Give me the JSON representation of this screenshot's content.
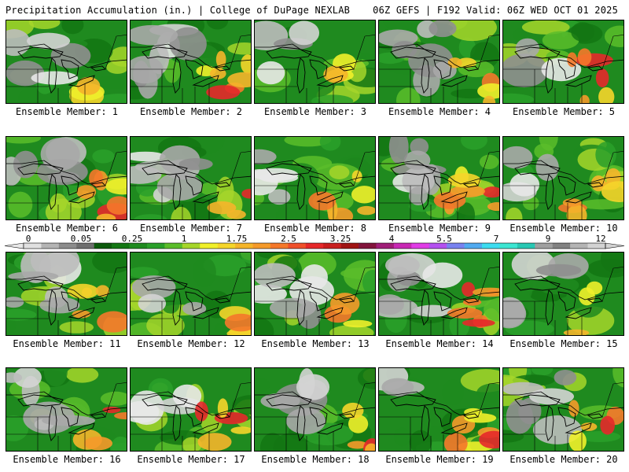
{
  "header": {
    "left": "Precipitation Accumulation (in.) | College of DuPage NEXLAB",
    "right": "06Z GEFS | F192 Valid: 06Z WED OCT 01 2025"
  },
  "panels": [
    {
      "label": "Ensemble Member: 1"
    },
    {
      "label": "Ensemble Member: 2"
    },
    {
      "label": "Ensemble Member: 3"
    },
    {
      "label": "Ensemble Member: 4"
    },
    {
      "label": "Ensemble Member: 5"
    },
    {
      "label": "Ensemble Member: 6"
    },
    {
      "label": "Ensemble Member: 7"
    },
    {
      "label": "Ensemble Member: 8"
    },
    {
      "label": "Ensemble Member: 9"
    },
    {
      "label": "Ensemble Member: 10"
    },
    {
      "label": "Ensemble Member: 11"
    },
    {
      "label": "Ensemble Member: 12"
    },
    {
      "label": "Ensemble Member: 13"
    },
    {
      "label": "Ensemble Member: 14"
    },
    {
      "label": "Ensemble Member: 15"
    },
    {
      "label": "Ensemble Member: 16"
    },
    {
      "label": "Ensemble Member: 17"
    },
    {
      "label": "Ensemble Member: 18"
    },
    {
      "label": "Ensemble Member: 19"
    },
    {
      "label": "Ensemble Member: 20"
    }
  ],
  "colorbar": {
    "labels": [
      "0",
      "0.05",
      "0.25",
      "1",
      "1.75",
      "2.5",
      "3.25",
      "4",
      "5.5",
      "7",
      "9",
      "12"
    ],
    "colors": [
      "#e0e0e0",
      "#b4b4b4",
      "#8c8c8c",
      "#6e6e6e",
      "#0c5a0c",
      "#137613",
      "#1f8a1f",
      "#2aa02a",
      "#5bbd2a",
      "#a6d62a",
      "#f0f02a",
      "#f5d52a",
      "#f5b52a",
      "#f59a2a",
      "#f5782a",
      "#f0502a",
      "#e6282a",
      "#c81e1e",
      "#a01414",
      "#82143c",
      "#a01e78",
      "#c828b4",
      "#e03ce6",
      "#b450f0",
      "#7882f0",
      "#50aaf0",
      "#3cdcf0",
      "#3ce6d2",
      "#28c8b4",
      "#a0a0a0",
      "#828282",
      "#b4b4b4",
      "#d2d2d2"
    ],
    "accent_green": "#1f8a1f"
  }
}
